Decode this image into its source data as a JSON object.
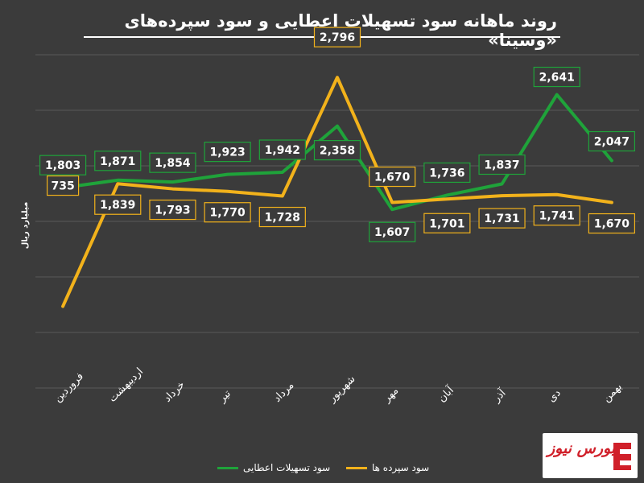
{
  "title": "روند ماهانه سود تسهیلات اعطایی و سود سپرده‌های «وسینا»",
  "logo": {
    "text": "بورس نیوز",
    "colors": [
      "#d0202a",
      "#ffffff"
    ]
  },
  "chart_data": {
    "type": "line",
    "categories": [
      "فروردین",
      "اردیبهشت",
      "خرداد",
      "تیر",
      "مرداد",
      "شهریور",
      "مهر",
      "آبان",
      "آذر",
      "دی",
      "بهمن"
    ],
    "ylabel": "میلیارد ریال",
    "ylim": [
      0,
      3000
    ],
    "grid": true,
    "legend_position": "bottom",
    "series": [
      {
        "name": "سود تسهیلات اعطایی",
        "color": "#1fa33a",
        "values": [
          1803,
          1871,
          1854,
          1923,
          1942,
          2358,
          1607,
          1736,
          1837,
          2641,
          2047
        ],
        "labels": [
          "1,803",
          "1,871",
          "1,854",
          "1,923",
          "1,942",
          "2,358",
          "1,607",
          "1,736",
          "1,837",
          "2,641",
          "2,047"
        ]
      },
      {
        "name": "سود سپرده ها",
        "color": "#f2b21b",
        "values": [
          735,
          1839,
          1793,
          1770,
          1728,
          2796,
          1670,
          1701,
          1731,
          1741,
          1670
        ],
        "labels": [
          "735",
          "1,839",
          "1,793",
          "1,770",
          "1,728",
          "2,796",
          "1,670",
          "1,701",
          "1,731",
          "1,741",
          "1,670"
        ]
      }
    ]
  }
}
